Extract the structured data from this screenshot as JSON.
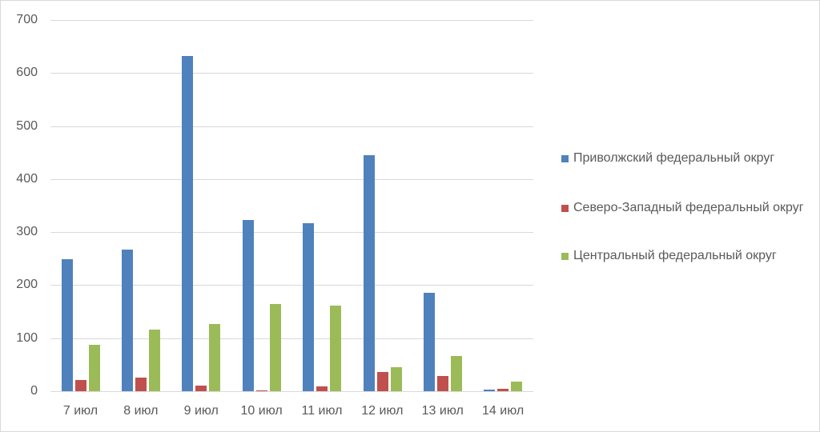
{
  "chart_data": {
    "type": "bar",
    "title": "",
    "xlabel": "",
    "ylabel": "",
    "ylim": [
      0,
      700
    ],
    "yticks": [
      0,
      100,
      200,
      300,
      400,
      500,
      600,
      700
    ],
    "grid": true,
    "legend_position": "right",
    "categories": [
      "7 июл",
      "8 июл",
      "9 июл",
      "10 июл",
      "11 июл",
      "12 июл",
      "13 июл",
      "14 июл"
    ],
    "series": [
      {
        "name": "Приволжский федеральный округ",
        "color": "#4f81bd",
        "values": [
          249,
          267,
          632,
          323,
          317,
          445,
          185,
          3
        ]
      },
      {
        "name": "Северо-Западный федеральный округ",
        "color": "#c0504d",
        "values": [
          21,
          25,
          11,
          1,
          9,
          36,
          29,
          5
        ]
      },
      {
        "name": "Центральный федеральный округ",
        "color": "#9bbb59",
        "values": [
          88,
          116,
          126,
          164,
          161,
          45,
          66,
          18
        ]
      }
    ]
  }
}
